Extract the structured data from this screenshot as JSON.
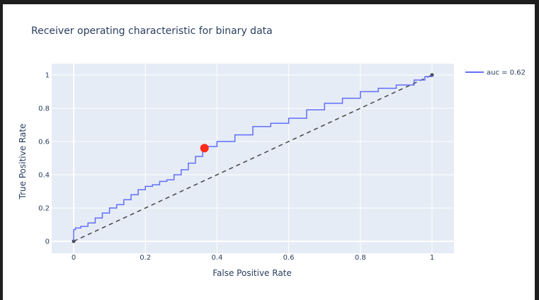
{
  "title": "Receiver operating characteristic for binary data",
  "colors": {
    "plot_bg": "#e5ecf6",
    "grid": "#ffffff",
    "roc_line": "#636efa",
    "diagonal": "#444444",
    "marker": "#ff2b1c",
    "text": "#2a3f5f"
  },
  "chart_data": {
    "type": "line",
    "title": "Receiver operating characteristic for binary data",
    "xlabel": "False Positive Rate",
    "ylabel": "True Positive Rate",
    "xlim": [
      0,
      1
    ],
    "ylim": [
      0,
      1
    ],
    "x_ticks": [
      0,
      0.2,
      0.4,
      0.6,
      0.8,
      1
    ],
    "y_ticks": [
      0,
      0.2,
      0.4,
      0.6,
      0.8,
      1
    ],
    "x_tick_labels": [
      "0",
      "0.2",
      "0.4",
      "0.6",
      "0.8",
      "1"
    ],
    "y_tick_labels": [
      "0",
      "0.2",
      "0.4",
      "0.6",
      "0.8",
      "1"
    ],
    "grid": true,
    "legend_position": "top-right",
    "series": [
      {
        "name": "auc = 0.62",
        "style": "solid",
        "x": [
          0,
          0,
          0.005,
          0.02,
          0.04,
          0.06,
          0.08,
          0.1,
          0.12,
          0.14,
          0.16,
          0.18,
          0.2,
          0.22,
          0.24,
          0.26,
          0.28,
          0.3,
          0.32,
          0.34,
          0.36,
          0.37,
          0.4,
          0.45,
          0.5,
          0.55,
          0.6,
          0.65,
          0.7,
          0.75,
          0.8,
          0.85,
          0.9,
          0.95,
          0.98,
          1.0
        ],
        "y": [
          0,
          0.07,
          0.08,
          0.09,
          0.11,
          0.14,
          0.17,
          0.2,
          0.22,
          0.25,
          0.28,
          0.31,
          0.33,
          0.34,
          0.36,
          0.37,
          0.4,
          0.43,
          0.47,
          0.51,
          0.55,
          0.57,
          0.6,
          0.64,
          0.69,
          0.71,
          0.74,
          0.79,
          0.83,
          0.86,
          0.9,
          0.92,
          0.94,
          0.97,
          0.99,
          1.0
        ]
      },
      {
        "name": "",
        "style": "dashed",
        "x": [
          0,
          1
        ],
        "y": [
          0,
          1
        ]
      }
    ],
    "highlight_point": {
      "x": 0.365,
      "y": 0.56
    }
  }
}
